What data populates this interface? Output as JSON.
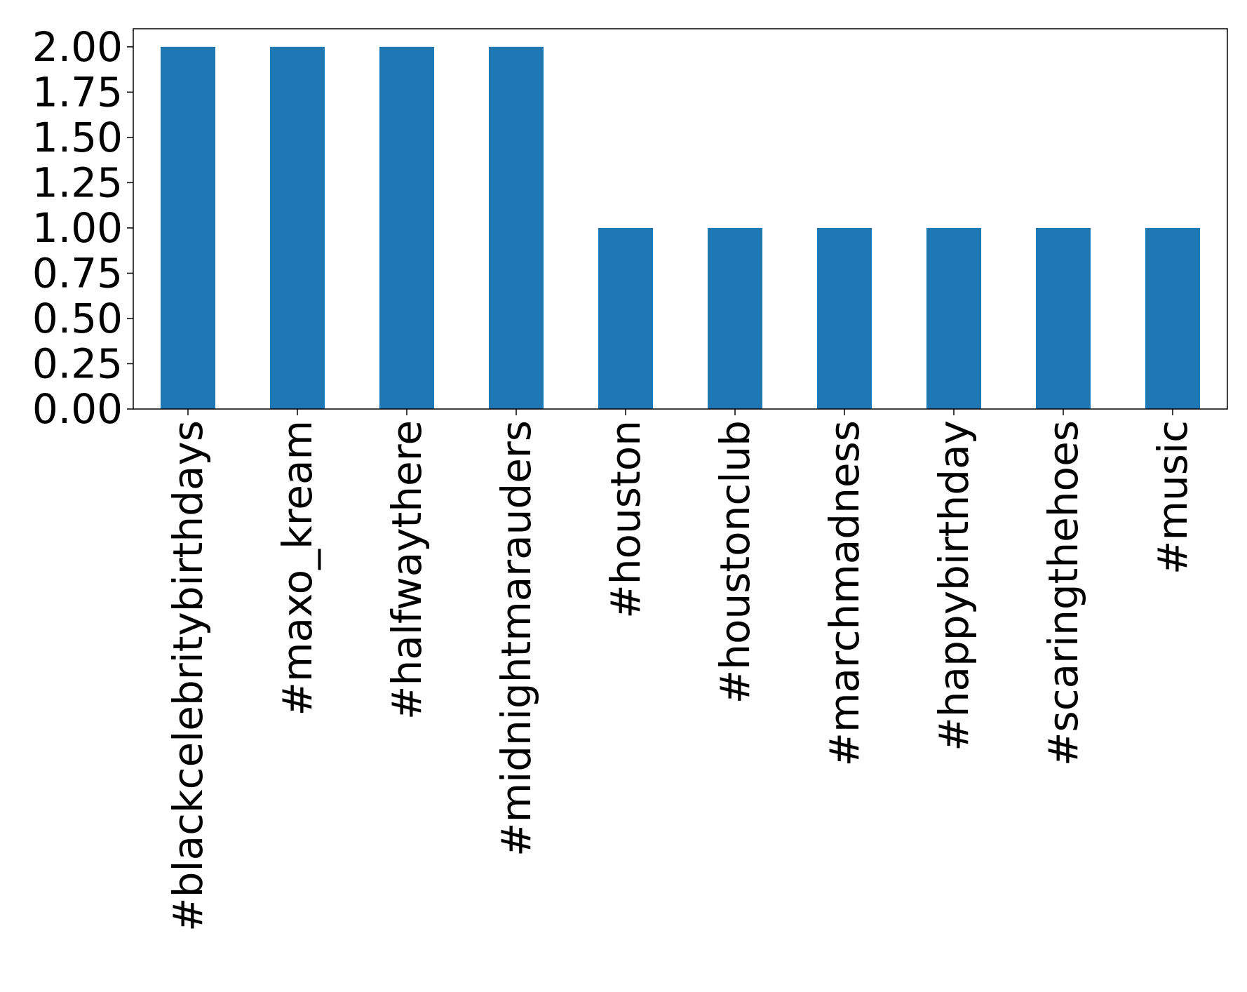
{
  "chart_data": {
    "type": "bar",
    "title": "",
    "xlabel": "",
    "ylabel": "",
    "categories": [
      "#blackcelebritybirthdays",
      "#maxo_kream",
      "#halfwaythere",
      "#midnightmarauders",
      "#houston",
      "#houstonclub",
      "#marchmadness",
      "#happybirthday",
      "#scaringthehoes",
      "#music"
    ],
    "values": [
      2,
      2,
      2,
      2,
      1,
      1,
      1,
      1,
      1,
      1
    ],
    "ylim": [
      0,
      2.1
    ],
    "yticks": [
      "0.00",
      "0.25",
      "0.50",
      "0.75",
      "1.00",
      "1.25",
      "1.50",
      "1.75",
      "2.00"
    ],
    "ytick_values": [
      0,
      0.25,
      0.5,
      0.75,
      1.0,
      1.25,
      1.5,
      1.75,
      2.0
    ],
    "grid": false,
    "legend": "none",
    "bar_color": "#1f77b4",
    "x_tick_rotation": "vertical"
  }
}
